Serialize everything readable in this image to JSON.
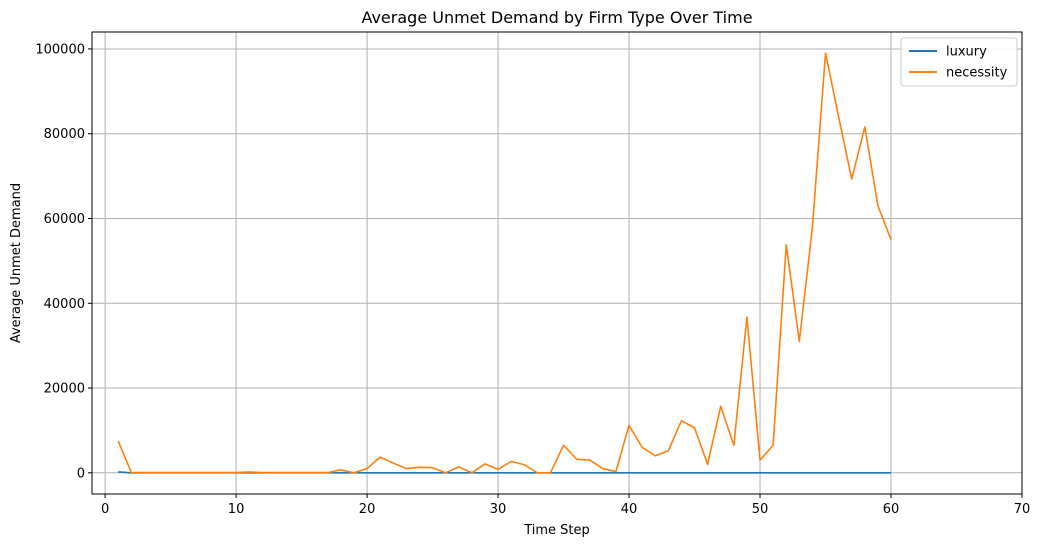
{
  "chart_data": {
    "type": "line",
    "title": "Average Unmet Demand by Firm Type Over Time",
    "xlabel": "Time Step",
    "ylabel": "Average Unmet Demand",
    "xlim": [
      -1,
      70
    ],
    "ylim": [
      -5000,
      104000
    ],
    "xticks": [
      0,
      10,
      20,
      30,
      40,
      50,
      60,
      70
    ],
    "yticks": [
      0,
      20000,
      40000,
      60000,
      80000,
      100000
    ],
    "grid": true,
    "legend_position": "top-right",
    "x": [
      1,
      2,
      3,
      4,
      5,
      6,
      7,
      8,
      9,
      10,
      11,
      12,
      13,
      14,
      15,
      16,
      17,
      18,
      19,
      20,
      21,
      22,
      23,
      24,
      25,
      26,
      27,
      28,
      29,
      30,
      31,
      32,
      33,
      34,
      35,
      36,
      37,
      38,
      39,
      40,
      41,
      42,
      43,
      44,
      45,
      46,
      47,
      48,
      49,
      50,
      51,
      52,
      53,
      54,
      55,
      56,
      57,
      58,
      59,
      60
    ],
    "series": [
      {
        "name": "luxury",
        "color": "#1f77b4",
        "values": [
          200,
          0,
          0,
          0,
          0,
          0,
          0,
          0,
          0,
          0,
          0,
          0,
          0,
          0,
          0,
          0,
          0,
          0,
          0,
          0,
          0,
          0,
          0,
          0,
          0,
          0,
          0,
          0,
          0,
          0,
          0,
          0,
          0,
          0,
          0,
          0,
          0,
          0,
          0,
          0,
          0,
          0,
          0,
          0,
          0,
          0,
          0,
          0,
          0,
          0,
          0,
          0,
          0,
          0,
          0,
          0,
          0,
          0,
          0,
          0
        ]
      },
      {
        "name": "necessity",
        "color": "#ff7f0e",
        "values": [
          7500,
          100,
          50,
          50,
          50,
          50,
          50,
          50,
          50,
          50,
          200,
          50,
          50,
          50,
          50,
          50,
          50,
          700,
          0,
          1000,
          3700,
          2300,
          1000,
          1300,
          1200,
          0,
          1400,
          0,
          2100,
          800,
          2700,
          1900,
          0,
          0,
          6500,
          3200,
          3000,
          1000,
          300,
          11200,
          6000,
          4000,
          5200,
          12300,
          10600,
          2000,
          15700,
          6500,
          36700,
          3000,
          6500,
          53800,
          31000,
          58000,
          99000,
          84000,
          69300,
          81600,
          63000,
          55000
        ]
      }
    ]
  }
}
